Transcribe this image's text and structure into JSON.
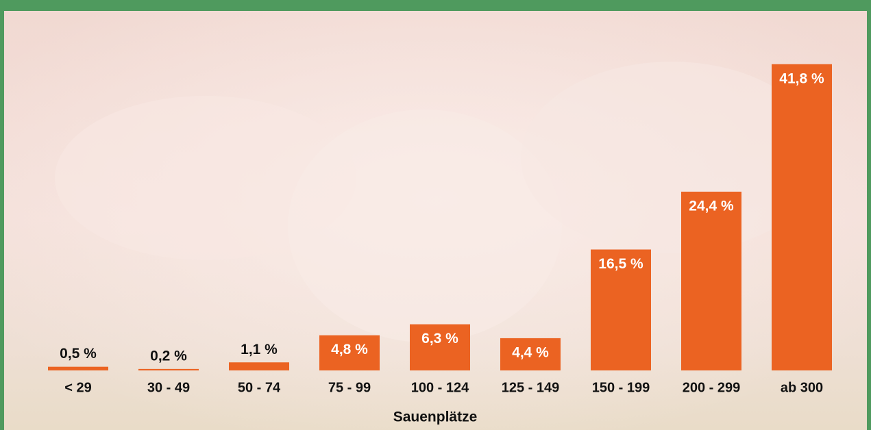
{
  "chart_data": {
    "type": "bar",
    "x_label": "Sauenplätze",
    "categories": [
      "< 29",
      "30 - 49",
      "50 - 74",
      "75 - 99",
      "100 - 124",
      "125 - 149",
      "150 - 199",
      "200 - 299",
      "ab 300"
    ],
    "values": [
      0.5,
      0.2,
      1.1,
      4.8,
      6.3,
      4.4,
      16.5,
      24.4,
      41.8
    ],
    "value_labels": [
      "0,5 %",
      "0,2 %",
      "1,1 %",
      "4,8 %",
      "6,3 %",
      "4,4 %",
      "16,5 %",
      "24,4 %",
      "41,8 %"
    ],
    "color": "#eb6322"
  }
}
